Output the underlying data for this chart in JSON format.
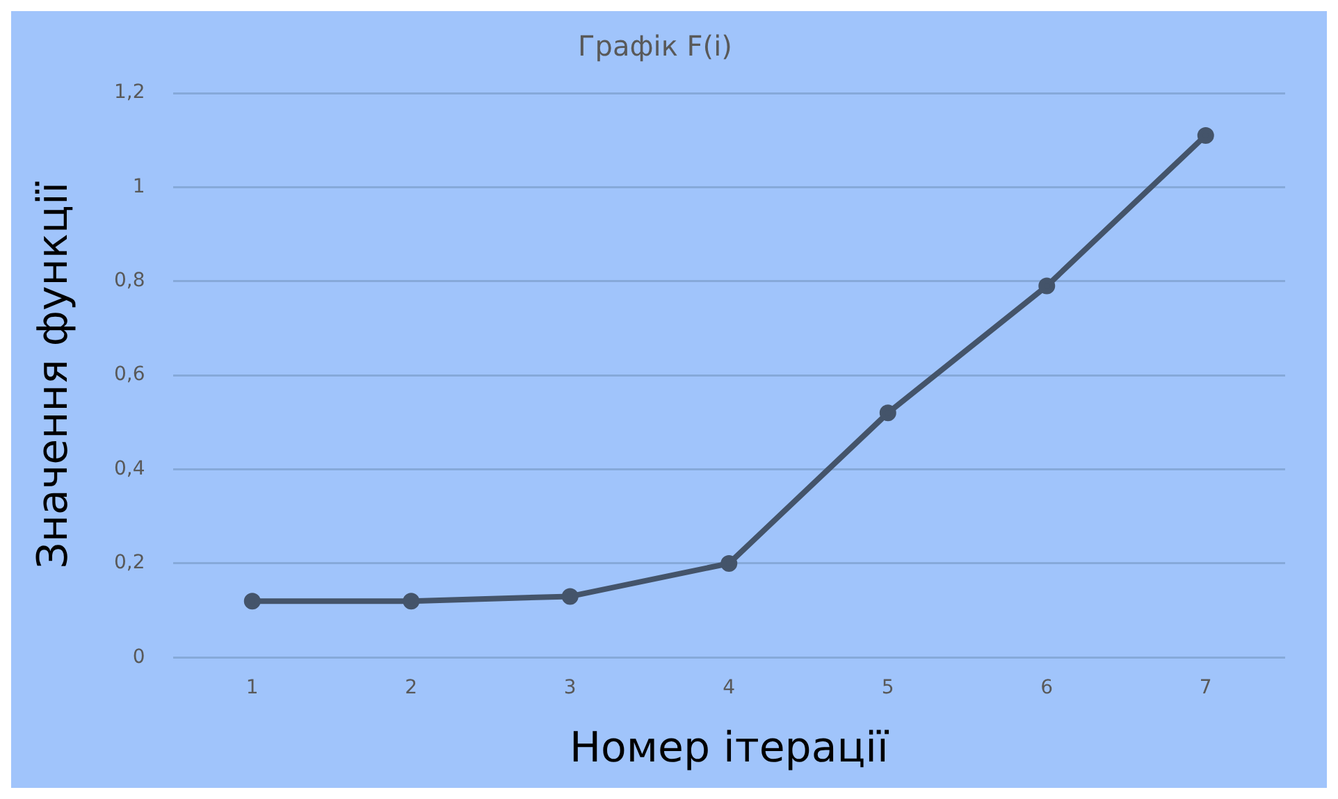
{
  "chart_data": {
    "type": "line",
    "title": "Графік F(i)",
    "xlabel": "Номер ітерації",
    "ylabel": "Значення функції",
    "categories": [
      "1",
      "2",
      "3",
      "4",
      "5",
      "6",
      "7"
    ],
    "series": [
      {
        "color": "#44546a",
        "values": [
          0.12,
          0.12,
          0.13,
          0.2,
          0.52,
          0.79,
          1.11
        ]
      }
    ],
    "ylim": [
      0,
      1.2
    ],
    "yticks": [
      {
        "value": 0,
        "label": "0"
      },
      {
        "value": 0.2,
        "label": "0,2"
      },
      {
        "value": 0.4,
        "label": "0,4"
      },
      {
        "value": 0.6,
        "label": "0,6"
      },
      {
        "value": 0.8,
        "label": "0,8"
      },
      {
        "value": 1,
        "label": "1"
      },
      {
        "value": 1.2,
        "label": "1,2"
      }
    ],
    "grid": "y",
    "marker": "circle",
    "line_style": "solid",
    "legend": false
  }
}
